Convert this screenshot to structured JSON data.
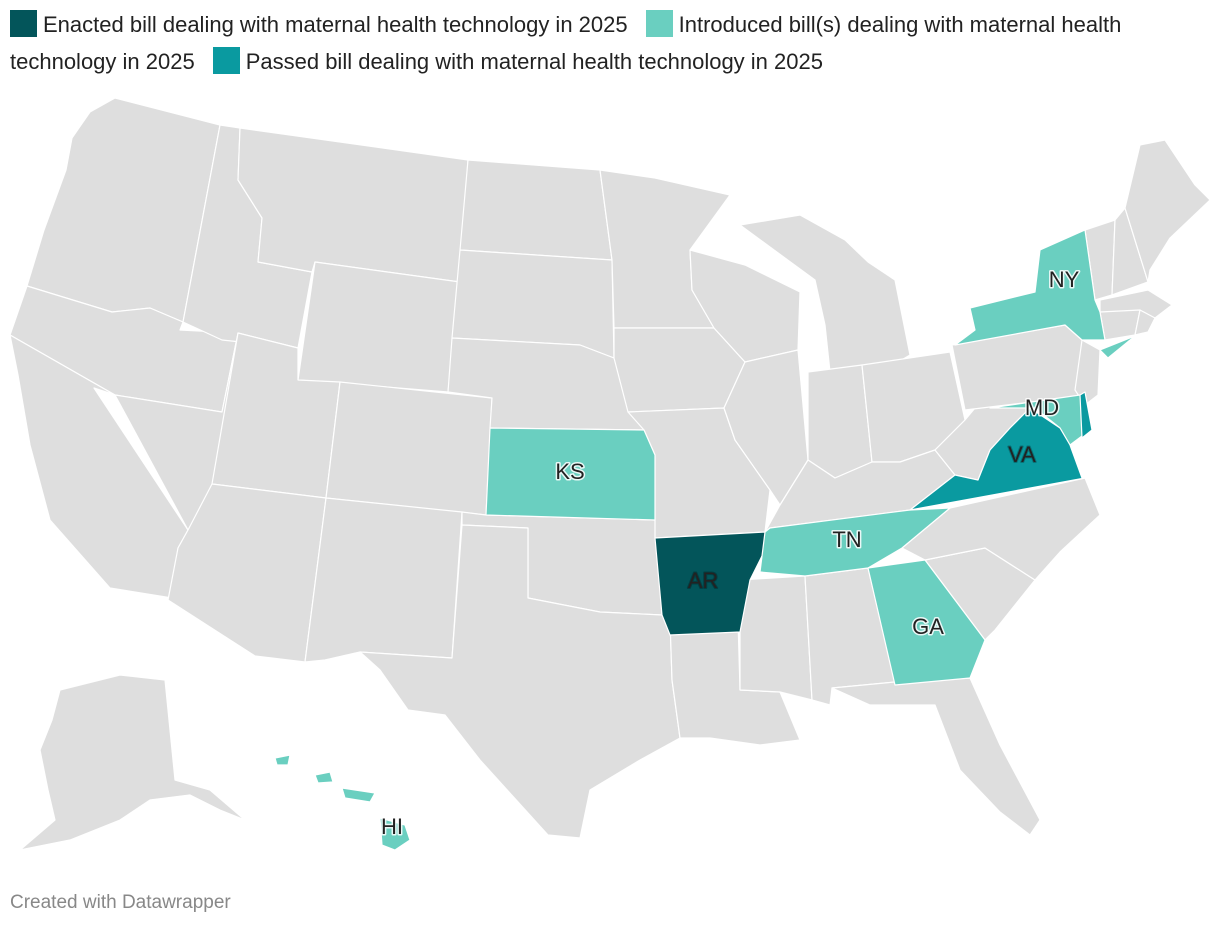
{
  "legend": [
    {
      "label": "Enacted bill dealing with maternal health technology in 2025",
      "color": "#03555A"
    },
    {
      "label": "Introduced bill(s) dealing with maternal health technology in 2025",
      "color": "#6ACFC0"
    },
    {
      "label": "Passed bill dealing with maternal health technology in 2025",
      "color": "#0A9AA0"
    }
  ],
  "colors": {
    "base": "#DEDEDE",
    "border": "#FFFFFF"
  },
  "states": {
    "AR": {
      "label": "AR",
      "status": "enacted"
    },
    "KS": {
      "label": "KS",
      "status": "introduced"
    },
    "TN": {
      "label": "TN",
      "status": "introduced"
    },
    "GA": {
      "label": "GA",
      "status": "introduced"
    },
    "NY": {
      "label": "NY",
      "status": "introduced"
    },
    "MD": {
      "label": "MD",
      "status": "introduced"
    },
    "HI": {
      "label": "HI",
      "status": "introduced"
    },
    "VA": {
      "label": "VA",
      "status": "passed"
    },
    "DE": {
      "status": "passed"
    }
  },
  "footer": "Created with Datawrapper"
}
